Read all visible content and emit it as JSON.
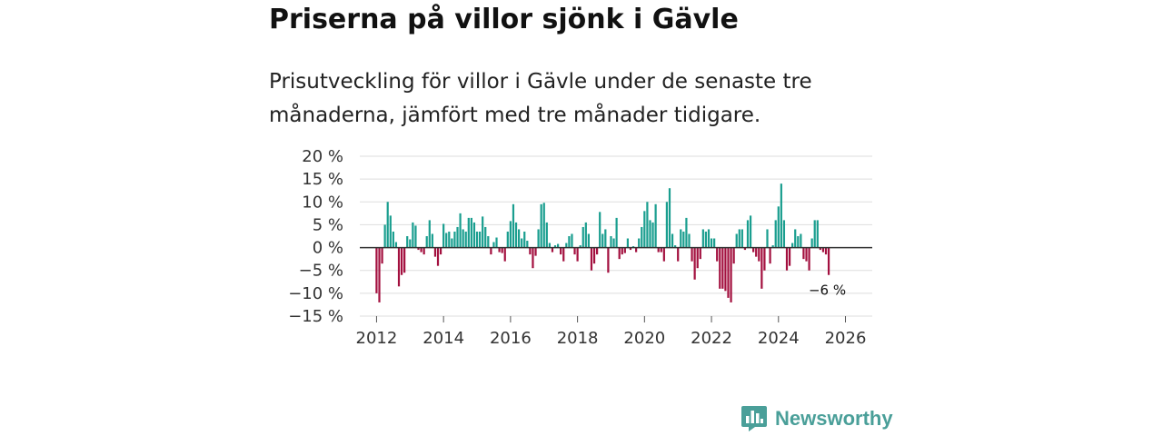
{
  "header": {
    "title": "Priserna på villor sjönk i Gävle",
    "subtitle": "Prisutveckling för villor i Gävle under de senaste tre månaderna, jämfört med tre månader tidigare."
  },
  "brand": {
    "name": "Newsworthy",
    "icon": "newsworthy-logo-icon"
  },
  "colors": {
    "positive": "#1a9e8f",
    "negative": "#a3103f",
    "grid": "#dddddd",
    "zero": "#333333",
    "brand": "#4a9f99"
  },
  "chart_data": {
    "type": "bar",
    "title": "Priserna på villor sjönk i Gävle",
    "xlabel": "",
    "ylabel": "",
    "ylim": [
      -15,
      20
    ],
    "xlim": [
      2011.5,
      2026.8
    ],
    "grid": true,
    "yticks": [
      20,
      15,
      10,
      5,
      0,
      -5,
      -10,
      -15
    ],
    "ytick_labels": [
      "20 %",
      "15 %",
      "10 %",
      "5 %",
      "0 %",
      "−5 %",
      "−10 %",
      "−15 %"
    ],
    "xticks": [
      2012,
      2014,
      2016,
      2018,
      2020,
      2022,
      2024,
      2026
    ],
    "xtick_labels": [
      "2012",
      "2014",
      "2016",
      "2018",
      "2020",
      "2022",
      "2024",
      "2026"
    ],
    "start": {
      "year": 2012,
      "month": 1
    },
    "values": [
      -10,
      -12,
      -3.5,
      5,
      10,
      7,
      3.5,
      1.2,
      -8.5,
      -6,
      -5.5,
      2.5,
      1.8,
      5.5,
      4.8,
      -0.5,
      -1,
      -1.5,
      2.5,
      6,
      3,
      -2,
      -4,
      -1.5,
      5.2,
      3.2,
      3.5,
      2,
      3.5,
      4.5,
      7.5,
      4,
      3.5,
      6.5,
      6.5,
      5.5,
      3.5,
      3.5,
      6.8,
      4.5,
      2.5,
      -1.5,
      1.2,
      2.2,
      -1,
      -1.2,
      -3,
      3.5,
      5.8,
      9.5,
      5.5,
      4,
      2,
      3.5,
      1.5,
      -1.5,
      -4.5,
      -1.8,
      4,
      9.5,
      9.8,
      5.5,
      1,
      -1,
      0.5,
      0.8,
      -1.5,
      -3,
      1,
      2.5,
      3,
      -1.5,
      -3,
      0.5,
      4.5,
      5.5,
      3,
      -5,
      -3.5,
      -1.5,
      7.8,
      3,
      4,
      -5.5,
      2.5,
      2,
      6.5,
      -2.5,
      -1.5,
      -1.2,
      2,
      -0.5,
      0.3,
      -1,
      2,
      4.5,
      8,
      10,
      6,
      5.5,
      9.5,
      -1,
      -1,
      -3,
      10,
      13,
      3,
      0.5,
      -3,
      4,
      3.5,
      6.5,
      3,
      -3,
      -7,
      -4.5,
      -2.5,
      4,
      3.5,
      4,
      2,
      2,
      -3,
      -9,
      -9,
      -9.5,
      -11,
      -12,
      -3.5,
      3,
      4,
      4,
      -0.5,
      6,
      7,
      -1,
      -2,
      -3,
      -9,
      -5,
      4,
      -3.5,
      0.5,
      6,
      9,
      14,
      6,
      -5,
      -4,
      1,
      4,
      2.5,
      3,
      -2.5,
      -3,
      -5,
      2,
      6,
      6,
      -0.5,
      -1,
      -1.5,
      -6
    ],
    "annotations": [
      {
        "text": "−6 %",
        "at_value": -6,
        "target": "last"
      }
    ]
  }
}
